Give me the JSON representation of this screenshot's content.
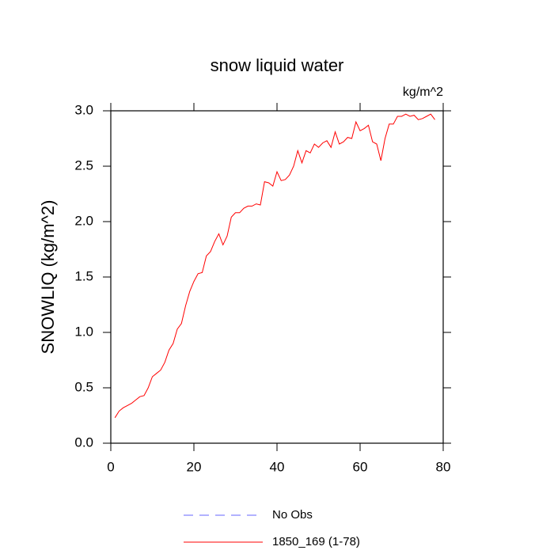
{
  "chart_data": {
    "type": "line",
    "title": "snow liquid water",
    "units_label": "kg/m^2",
    "y_label": "SNOWLIQ  (kg/m^2)",
    "x": [
      1,
      2,
      3,
      4,
      5,
      6,
      7,
      8,
      9,
      10,
      11,
      12,
      13,
      14,
      15,
      16,
      17,
      18,
      19,
      20,
      21,
      22,
      23,
      24,
      25,
      26,
      27,
      28,
      29,
      30,
      31,
      32,
      33,
      34,
      35,
      36,
      37,
      38,
      39,
      40,
      41,
      42,
      43,
      44,
      45,
      46,
      47,
      48,
      49,
      50,
      51,
      52,
      53,
      54,
      55,
      56,
      57,
      58,
      59,
      60,
      61,
      62,
      63,
      64,
      65,
      66,
      67,
      68,
      69,
      70,
      71,
      72,
      73,
      74,
      75,
      76,
      77,
      78
    ],
    "series": [
      {
        "name": "No Obs",
        "color": "#6666ff",
        "dash": "dashed",
        "values": [
          null,
          null,
          null,
          null,
          null,
          null,
          null,
          null,
          null,
          null,
          null,
          null,
          null,
          null,
          null,
          null,
          null,
          null,
          null,
          null,
          null,
          null,
          null,
          null,
          null,
          null,
          null,
          null,
          null,
          null,
          null,
          null,
          null,
          null,
          null,
          null,
          null,
          null,
          null,
          null,
          null,
          null,
          null,
          null,
          null,
          null,
          null,
          null,
          null,
          null,
          null,
          null,
          null,
          null,
          null,
          null,
          null,
          null,
          null,
          null,
          null,
          null,
          null,
          null,
          null,
          null,
          null,
          null,
          null,
          null,
          null,
          null,
          null,
          null,
          null,
          null,
          null,
          null
        ]
      },
      {
        "name": "1850_169 (1-78)",
        "color": "#ff0000",
        "dash": "solid",
        "values": [
          0.23,
          0.29,
          0.32,
          0.34,
          0.36,
          0.39,
          0.42,
          0.43,
          0.5,
          0.6,
          0.63,
          0.66,
          0.73,
          0.84,
          0.9,
          1.03,
          1.08,
          1.24,
          1.37,
          1.46,
          1.53,
          1.54,
          1.69,
          1.73,
          1.82,
          1.89,
          1.79,
          1.87,
          2.04,
          2.08,
          2.08,
          2.12,
          2.14,
          2.14,
          2.16,
          2.15,
          2.36,
          2.35,
          2.32,
          2.45,
          2.37,
          2.38,
          2.42,
          2.5,
          2.64,
          2.53,
          2.64,
          2.62,
          2.7,
          2.67,
          2.71,
          2.73,
          2.67,
          2.81,
          2.7,
          2.72,
          2.76,
          2.75,
          2.9,
          2.82,
          2.84,
          2.87,
          2.72,
          2.7,
          2.55,
          2.75,
          2.88,
          2.88,
          2.95,
          2.95,
          2.97,
          2.95,
          2.96,
          2.92,
          2.93,
          2.95,
          2.97,
          2.92
        ]
      }
    ],
    "xlim": [
      0,
      80
    ],
    "xticks": [
      0,
      20,
      40,
      60,
      80
    ],
    "ylim": [
      0,
      3
    ],
    "yticks": [
      {
        "value": 0,
        "label": "0.0"
      },
      {
        "value": 0.5,
        "label": "0.5"
      },
      {
        "value": 1,
        "label": "1.0"
      },
      {
        "value": 1.5,
        "label": "1.5"
      },
      {
        "value": 2,
        "label": "2.0"
      },
      {
        "value": 2.5,
        "label": "2.5"
      },
      {
        "value": 3,
        "label": "3.0"
      }
    ],
    "grid": false
  }
}
